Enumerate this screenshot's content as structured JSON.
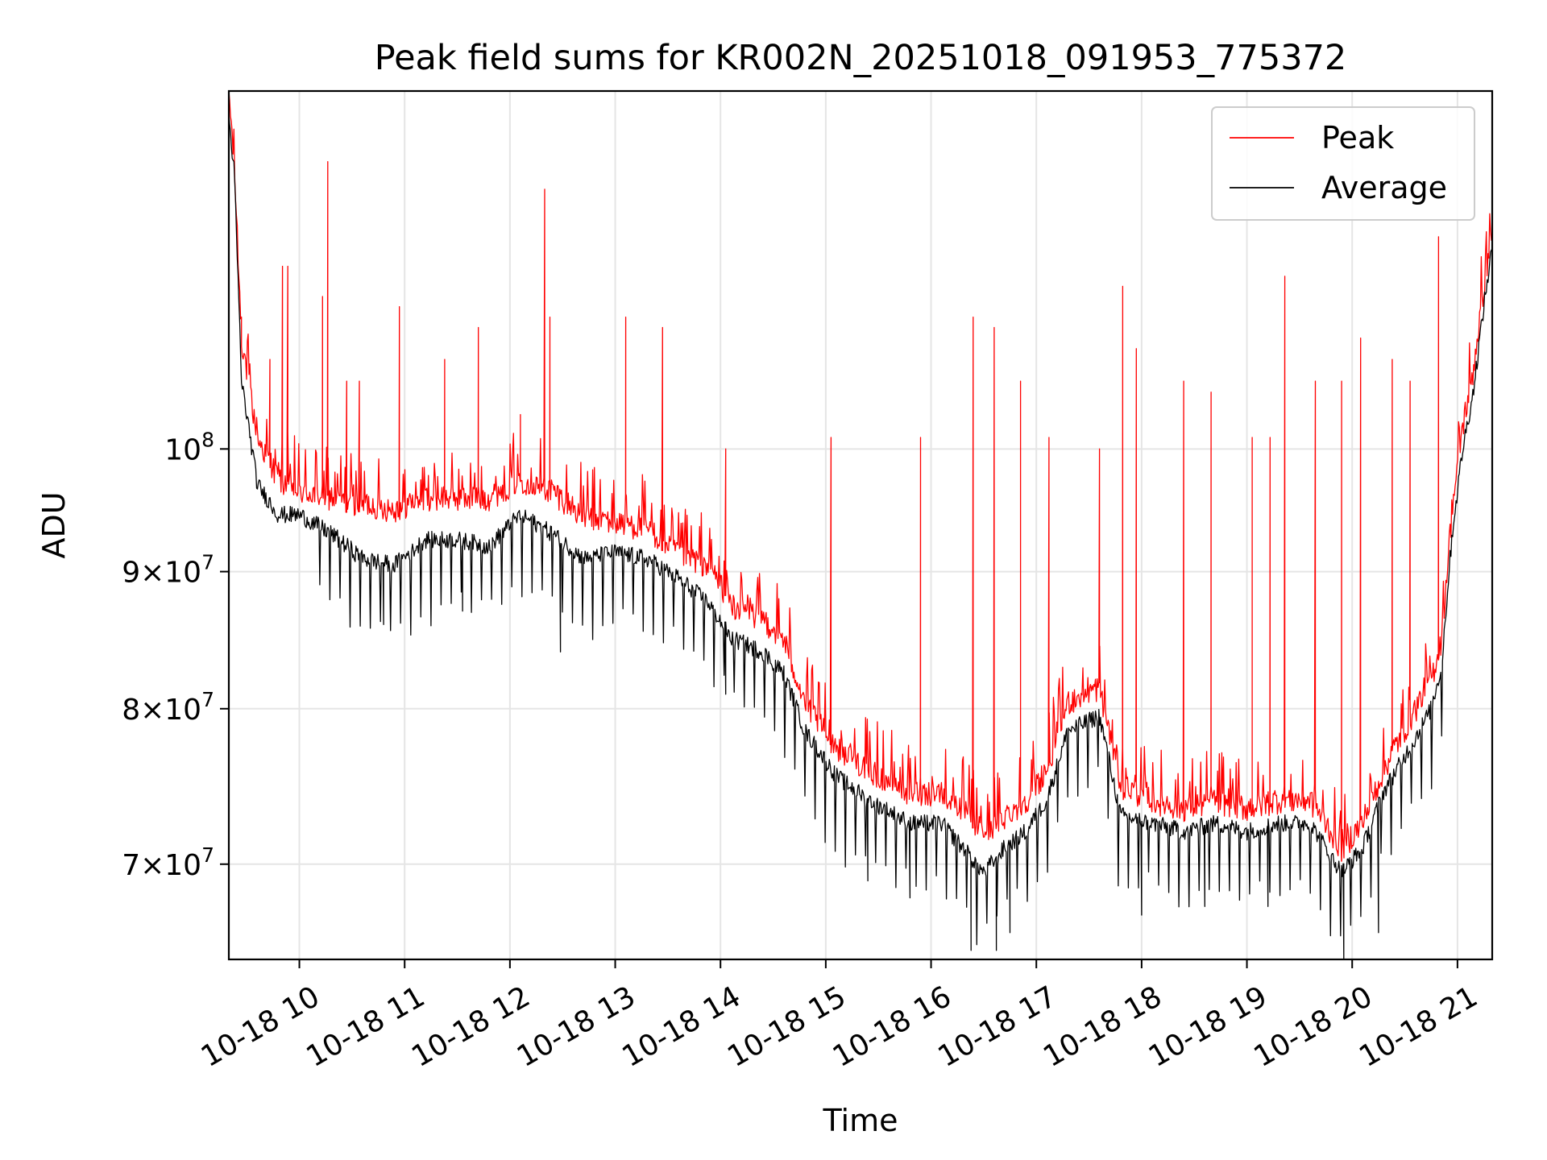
{
  "chart_data": {
    "type": "line",
    "title": "Peak field sums for KR002N_20251018_091953_775372",
    "xlabel": "Time",
    "ylabel": "ADU",
    "y_scale": "log",
    "ylim": [
      64500000,
      136000000
    ],
    "xlim_hours": [
      9.33,
      21.33
    ],
    "grid": true,
    "legend_position": "upper-right",
    "x_ticks": [
      {
        "hour": 10,
        "label": "10-18 10"
      },
      {
        "hour": 11,
        "label": "10-18 11"
      },
      {
        "hour": 12,
        "label": "10-18 12"
      },
      {
        "hour": 13,
        "label": "10-18 13"
      },
      {
        "hour": 14,
        "label": "10-18 14"
      },
      {
        "hour": 15,
        "label": "10-18 15"
      },
      {
        "hour": 16,
        "label": "10-18 16"
      },
      {
        "hour": 17,
        "label": "10-18 17"
      },
      {
        "hour": 18,
        "label": "10-18 18"
      },
      {
        "hour": 19,
        "label": "10-18 19"
      },
      {
        "hour": 20,
        "label": "10-18 20"
      },
      {
        "hour": 21,
        "label": "10-18 21"
      }
    ],
    "y_ticks": [
      {
        "value": 100000000,
        "mant": "",
        "base": "10",
        "exp": "8"
      },
      {
        "value": 90000000,
        "mant": "9×",
        "base": "10",
        "exp": "7"
      },
      {
        "value": 80000000,
        "mant": "8×",
        "base": "10",
        "exp": "7"
      },
      {
        "value": 70000000,
        "mant": "7×",
        "base": "10",
        "exp": "7"
      }
    ],
    "series": [
      {
        "name": "Peak",
        "color": "#ff0000",
        "baseline": [
          [
            9.33,
            136000000
          ],
          [
            9.38,
            128000000
          ],
          [
            9.45,
            110000000
          ],
          [
            9.6,
            101000000
          ],
          [
            9.8,
            97500000
          ],
          [
            10.0,
            96500000
          ],
          [
            10.3,
            96000000
          ],
          [
            10.6,
            95500000
          ],
          [
            10.9,
            95000000
          ],
          [
            11.2,
            96000000
          ],
          [
            11.5,
            96000000
          ],
          [
            11.8,
            96000000
          ],
          [
            12.1,
            97500000
          ],
          [
            12.4,
            96500000
          ],
          [
            12.7,
            94500000
          ],
          [
            13.0,
            94000000
          ],
          [
            13.3,
            93500000
          ],
          [
            13.6,
            91500000
          ],
          [
            13.9,
            90500000
          ],
          [
            14.1,
            87500000
          ],
          [
            14.4,
            86500000
          ],
          [
            14.6,
            85000000
          ],
          [
            14.8,
            80500000
          ],
          [
            15.1,
            77500000
          ],
          [
            15.4,
            76000000
          ],
          [
            15.8,
            74500000
          ],
          [
            16.1,
            74500000
          ],
          [
            16.3,
            73500000
          ],
          [
            16.5,
            72000000
          ],
          [
            16.7,
            73000000
          ],
          [
            16.9,
            74000000
          ],
          [
            17.1,
            76000000
          ],
          [
            17.3,
            80500000
          ],
          [
            17.6,
            81500000
          ],
          [
            17.8,
            75000000
          ],
          [
            18.1,
            74000000
          ],
          [
            18.4,
            73500000
          ],
          [
            18.7,
            74000000
          ],
          [
            19.0,
            73500000
          ],
          [
            19.3,
            74000000
          ],
          [
            19.6,
            74000000
          ],
          [
            19.9,
            71000000
          ],
          [
            20.1,
            72500000
          ],
          [
            20.3,
            76000000
          ],
          [
            20.6,
            80000000
          ],
          [
            20.75,
            82000000
          ],
          [
            20.85,
            85000000
          ],
          [
            20.95,
            95000000
          ],
          [
            21.05,
            102000000
          ],
          [
            21.15,
            107000000
          ],
          [
            21.25,
            115000000
          ],
          [
            21.33,
            121000000
          ]
        ],
        "spikes": [
          {
            "hour": 9.45,
            "value": 112000000
          },
          {
            "hour": 9.72,
            "value": 108000000
          },
          {
            "hour": 9.84,
            "value": 117000000
          },
          {
            "hour": 9.89,
            "value": 117000000
          },
          {
            "hour": 10.22,
            "value": 114000000
          },
          {
            "hour": 10.27,
            "value": 128000000
          },
          {
            "hour": 10.45,
            "value": 106000000
          },
          {
            "hour": 10.57,
            "value": 106000000
          },
          {
            "hour": 10.95,
            "value": 113000000
          },
          {
            "hour": 11.38,
            "value": 108000000
          },
          {
            "hour": 11.7,
            "value": 111000000
          },
          {
            "hour": 12.1,
            "value": 103000000
          },
          {
            "hour": 12.33,
            "value": 125000000
          },
          {
            "hour": 12.38,
            "value": 112000000
          },
          {
            "hour": 13.1,
            "value": 112000000
          },
          {
            "hour": 13.45,
            "value": 111000000
          },
          {
            "hour": 14.05,
            "value": 100000000
          },
          {
            "hour": 15.05,
            "value": 101000000
          },
          {
            "hour": 15.9,
            "value": 101000000
          },
          {
            "hour": 16.4,
            "value": 112000000
          },
          {
            "hour": 16.6,
            "value": 111000000
          },
          {
            "hour": 16.85,
            "value": 106000000
          },
          {
            "hour": 17.12,
            "value": 101000000
          },
          {
            "hour": 17.6,
            "value": 100000000
          },
          {
            "hour": 17.82,
            "value": 115000000
          },
          {
            "hour": 17.95,
            "value": 109000000
          },
          {
            "hour": 18.4,
            "value": 106000000
          },
          {
            "hour": 18.66,
            "value": 105000000
          },
          {
            "hour": 19.05,
            "value": 101000000
          },
          {
            "hour": 19.22,
            "value": 101000000
          },
          {
            "hour": 19.36,
            "value": 116000000
          },
          {
            "hour": 19.65,
            "value": 106000000
          },
          {
            "hour": 19.9,
            "value": 106000000
          },
          {
            "hour": 20.08,
            "value": 110000000
          },
          {
            "hour": 20.38,
            "value": 108000000
          },
          {
            "hour": 20.55,
            "value": 106000000
          },
          {
            "hour": 20.82,
            "value": 120000000
          }
        ]
      },
      {
        "name": "Average",
        "color": "#000000",
        "baseline": [
          [
            9.33,
            133000000
          ],
          [
            9.38,
            127000000
          ],
          [
            9.45,
            106000000
          ],
          [
            9.6,
            97000000
          ],
          [
            9.8,
            94500000
          ],
          [
            10.0,
            94500000
          ],
          [
            10.3,
            93000000
          ],
          [
            10.6,
            91000000
          ],
          [
            10.9,
            90500000
          ],
          [
            11.2,
            92500000
          ],
          [
            11.5,
            92500000
          ],
          [
            11.8,
            92000000
          ],
          [
            12.1,
            94500000
          ],
          [
            12.4,
            93000000
          ],
          [
            12.7,
            91000000
          ],
          [
            13.0,
            91500000
          ],
          [
            13.3,
            91000000
          ],
          [
            13.6,
            89500000
          ],
          [
            13.9,
            87500000
          ],
          [
            14.1,
            85000000
          ],
          [
            14.4,
            84000000
          ],
          [
            14.6,
            82500000
          ],
          [
            14.8,
            78500000
          ],
          [
            15.1,
            75500000
          ],
          [
            15.4,
            74000000
          ],
          [
            15.8,
            72500000
          ],
          [
            16.1,
            72500000
          ],
          [
            16.3,
            71000000
          ],
          [
            16.5,
            69500000
          ],
          [
            16.7,
            71000000
          ],
          [
            16.9,
            72000000
          ],
          [
            17.1,
            74000000
          ],
          [
            17.3,
            78500000
          ],
          [
            17.6,
            79500000
          ],
          [
            17.8,
            73000000
          ],
          [
            18.1,
            72500000
          ],
          [
            18.4,
            72000000
          ],
          [
            18.7,
            72500000
          ],
          [
            19.0,
            72000000
          ],
          [
            19.3,
            72500000
          ],
          [
            19.6,
            72500000
          ],
          [
            19.9,
            69500000
          ],
          [
            20.1,
            71000000
          ],
          [
            20.3,
            74500000
          ],
          [
            20.6,
            78000000
          ],
          [
            20.75,
            80000000
          ],
          [
            20.85,
            83000000
          ],
          [
            20.95,
            93000000
          ],
          [
            21.05,
            100000000
          ],
          [
            21.15,
            105000000
          ],
          [
            21.25,
            113000000
          ],
          [
            21.33,
            119000000
          ]
        ],
        "dips": [
          {
            "hour": 10.8,
            "value": 86000000
          },
          {
            "hour": 11.55,
            "value": 87000000
          },
          {
            "hour": 12.48,
            "value": 84000000
          },
          {
            "hour": 14.05,
            "value": 81000000
          },
          {
            "hour": 15.4,
            "value": 69000000
          },
          {
            "hour": 15.8,
            "value": 68000000
          },
          {
            "hour": 16.38,
            "value": 65000000
          },
          {
            "hour": 16.62,
            "value": 65000000
          },
          {
            "hour": 16.75,
            "value": 66000000
          },
          {
            "hour": 18.0,
            "value": 67000000
          },
          {
            "hour": 18.6,
            "value": 67500000
          },
          {
            "hour": 19.2,
            "value": 67500000
          },
          {
            "hour": 19.92,
            "value": 64500000
          },
          {
            "hour": 20.25,
            "value": 66000000
          }
        ]
      }
    ]
  }
}
